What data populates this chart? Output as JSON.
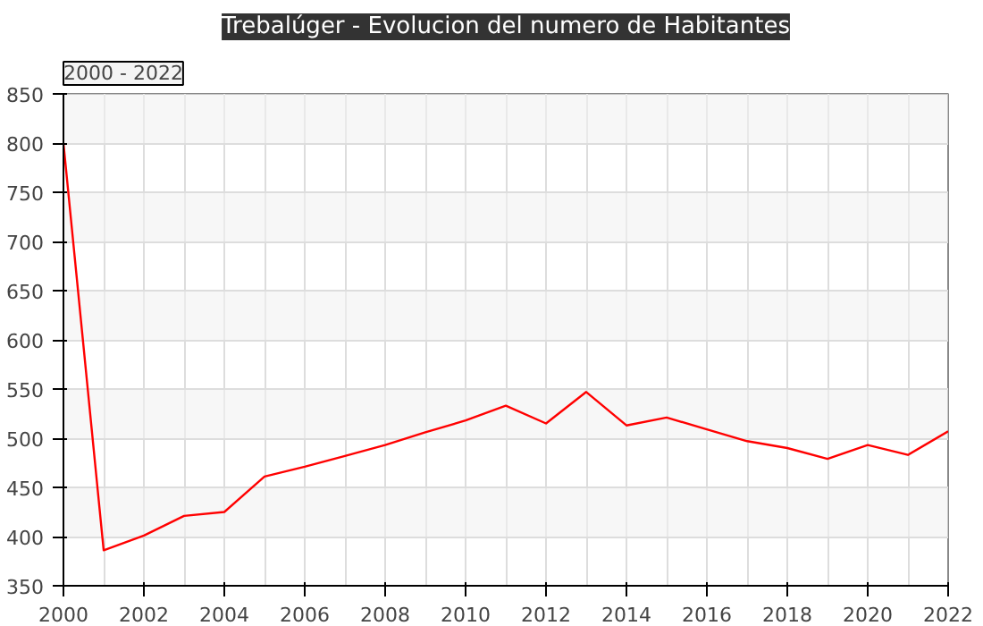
{
  "chart_data": {
    "type": "line",
    "title": "Trebalúger - Evolucion del numero de Habitantes",
    "annotations": [
      "2000 - 2022"
    ],
    "x": [
      2000,
      2001,
      2002,
      2003,
      2004,
      2005,
      2006,
      2007,
      2008,
      2009,
      2010,
      2011,
      2012,
      2013,
      2014,
      2015,
      2016,
      2017,
      2018,
      2019,
      2020,
      2021,
      2022
    ],
    "series": [
      {
        "color": "#ff0000",
        "values": [
          800,
          386,
          401,
          421,
          425,
          461,
          471,
          482,
          493,
          506,
          518,
          533,
          515,
          547,
          513,
          521,
          509,
          497,
          490,
          479,
          493,
          483,
          507
        ]
      }
    ],
    "xlim": [
      2000,
      2022
    ],
    "xticks": [
      2000,
      2002,
      2004,
      2006,
      2008,
      2010,
      2012,
      2014,
      2016,
      2018,
      2020,
      2022
    ],
    "ylim": [
      350,
      850
    ],
    "yticks": [
      350,
      400,
      450,
      500,
      550,
      600,
      650,
      700,
      750,
      800,
      850
    ],
    "grid": true,
    "marker": "none",
    "line_style": "solid"
  }
}
